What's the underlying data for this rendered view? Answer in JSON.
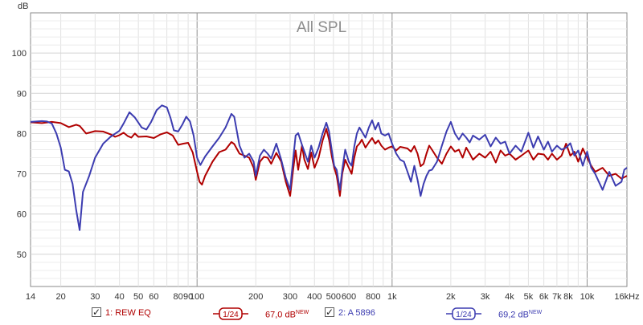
{
  "chart_data": {
    "type": "line",
    "title": "All SPL",
    "ylabel": "dB",
    "xunit": "Hz",
    "xscale": "log",
    "xlim": [
      14,
      16000
    ],
    "ylim": [
      42,
      110
    ],
    "grid": true,
    "xticks": [
      {
        "value": 14,
        "label": "14"
      },
      {
        "value": 20,
        "label": "20"
      },
      {
        "value": 30,
        "label": "30"
      },
      {
        "value": 40,
        "label": "40"
      },
      {
        "value": 50,
        "label": "50"
      },
      {
        "value": 60,
        "label": "60"
      },
      {
        "value": 80,
        "label": "80"
      },
      {
        "value": 90,
        "label": "90"
      },
      {
        "value": 100,
        "label": "100"
      },
      {
        "value": 200,
        "label": "200"
      },
      {
        "value": 300,
        "label": "300"
      },
      {
        "value": 400,
        "label": "400"
      },
      {
        "value": 500,
        "label": "500"
      },
      {
        "value": 600,
        "label": "600"
      },
      {
        "value": 800,
        "label": "800"
      },
      {
        "value": 1000,
        "label": "1k"
      },
      {
        "value": 2000,
        "label": "2k"
      },
      {
        "value": 3000,
        "label": "3k"
      },
      {
        "value": 4000,
        "label": "4k"
      },
      {
        "value": 5000,
        "label": "5k"
      },
      {
        "value": 6000,
        "label": "6k"
      },
      {
        "value": 7000,
        "label": "7k"
      },
      {
        "value": 8000,
        "label": "8k"
      },
      {
        "value": 10000,
        "label": "10k"
      },
      {
        "value": 16000,
        "label": "16kHz"
      }
    ],
    "yticks": [
      50,
      60,
      70,
      80,
      90,
      100
    ],
    "series": [
      {
        "name": "1: REW EQ",
        "color": "#b00000",
        "smoothing": "1/24",
        "level": "67,0 dB",
        "level_note": "NEW",
        "points": [
          [
            14,
            82.8
          ],
          [
            16,
            82.6
          ],
          [
            18,
            82.9
          ],
          [
            20,
            82.6
          ],
          [
            22,
            81.6
          ],
          [
            24,
            82.2
          ],
          [
            25,
            81.9
          ],
          [
            27,
            80.0
          ],
          [
            30,
            80.6
          ],
          [
            33,
            80.5
          ],
          [
            36,
            79.8
          ],
          [
            38,
            79.2
          ],
          [
            40,
            79.6
          ],
          [
            42,
            80.2
          ],
          [
            44,
            79.4
          ],
          [
            46,
            79.0
          ],
          [
            48,
            80.0
          ],
          [
            50,
            79.2
          ],
          [
            55,
            79.3
          ],
          [
            60,
            78.9
          ],
          [
            65,
            79.8
          ],
          [
            70,
            80.3
          ],
          [
            75,
            79.5
          ],
          [
            80,
            77.2
          ],
          [
            85,
            77.5
          ],
          [
            90,
            77.7
          ],
          [
            95,
            75.3
          ],
          [
            100,
            70.5
          ],
          [
            103,
            68.0
          ],
          [
            106,
            67.3
          ],
          [
            110,
            69.5
          ],
          [
            120,
            73.0
          ],
          [
            130,
            75.4
          ],
          [
            140,
            76.0
          ],
          [
            150,
            77.9
          ],
          [
            155,
            77.4
          ],
          [
            165,
            75.0
          ],
          [
            175,
            74.5
          ],
          [
            185,
            74.0
          ],
          [
            195,
            71.5
          ],
          [
            200,
            68.5
          ],
          [
            210,
            73.0
          ],
          [
            220,
            74.2
          ],
          [
            230,
            74.0
          ],
          [
            240,
            72.5
          ],
          [
            255,
            75.2
          ],
          [
            270,
            73.0
          ],
          [
            285,
            68.0
          ],
          [
            300,
            64.5
          ],
          [
            310,
            70.5
          ],
          [
            320,
            75.8
          ],
          [
            330,
            71.0
          ],
          [
            345,
            77.0
          ],
          [
            355,
            73.5
          ],
          [
            370,
            71.2
          ],
          [
            385,
            75.3
          ],
          [
            400,
            71.5
          ],
          [
            420,
            74.0
          ],
          [
            440,
            78.2
          ],
          [
            460,
            81.2
          ],
          [
            475,
            78.5
          ],
          [
            490,
            74.5
          ],
          [
            505,
            71.5
          ],
          [
            520,
            69.5
          ],
          [
            540,
            64.5
          ],
          [
            555,
            70.0
          ],
          [
            575,
            73.5
          ],
          [
            600,
            71.5
          ],
          [
            620,
            70.0
          ],
          [
            640,
            74.0
          ],
          [
            660,
            76.8
          ],
          [
            680,
            77.5
          ],
          [
            700,
            78.5
          ],
          [
            730,
            76.5
          ],
          [
            760,
            77.8
          ],
          [
            790,
            78.9
          ],
          [
            820,
            77.5
          ],
          [
            850,
            78.3
          ],
          [
            880,
            77.0
          ],
          [
            920,
            76.0
          ],
          [
            960,
            76.5
          ],
          [
            1000,
            76.8
          ],
          [
            1050,
            75.8
          ],
          [
            1100,
            76.7
          ],
          [
            1150,
            76.5
          ],
          [
            1200,
            76.3
          ],
          [
            1250,
            75.5
          ],
          [
            1300,
            76.9
          ],
          [
            1350,
            75.0
          ],
          [
            1400,
            71.9
          ],
          [
            1450,
            72.5
          ],
          [
            1500,
            75.0
          ],
          [
            1550,
            77.0
          ],
          [
            1600,
            76.0
          ],
          [
            1700,
            74.0
          ],
          [
            1800,
            72.5
          ],
          [
            1900,
            75.0
          ],
          [
            2000,
            76.8
          ],
          [
            2100,
            75.5
          ],
          [
            2200,
            76.0
          ],
          [
            2300,
            74.0
          ],
          [
            2400,
            76.5
          ],
          [
            2500,
            75.0
          ],
          [
            2600,
            73.5
          ],
          [
            2800,
            75.0
          ],
          [
            3000,
            74.0
          ],
          [
            3200,
            75.5
          ],
          [
            3400,
            72.8
          ],
          [
            3600,
            75.8
          ],
          [
            3800,
            74.5
          ],
          [
            4000,
            75.0
          ],
          [
            4300,
            73.5
          ],
          [
            4600,
            74.5
          ],
          [
            5000,
            75.8
          ],
          [
            5300,
            73.5
          ],
          [
            5600,
            75.0
          ],
          [
            6000,
            74.8
          ],
          [
            6300,
            73.5
          ],
          [
            6600,
            75.0
          ],
          [
            7000,
            73.5
          ],
          [
            7400,
            74.5
          ],
          [
            7800,
            77.5
          ],
          [
            8200,
            74.5
          ],
          [
            8600,
            75.5
          ],
          [
            9000,
            73.0
          ],
          [
            9500,
            76.3
          ],
          [
            10000,
            74.0
          ],
          [
            10500,
            72.0
          ],
          [
            11000,
            70.5
          ],
          [
            12000,
            71.5
          ],
          [
            13000,
            69.5
          ],
          [
            14000,
            70.0
          ],
          [
            15000,
            68.8
          ],
          [
            16000,
            69.5
          ]
        ]
      },
      {
        "name": "2: A 5896",
        "color": "#3c3cb0",
        "smoothing": "1/24",
        "level": "69,2 dB",
        "level_note": "NEW",
        "points": [
          [
            14,
            82.9
          ],
          [
            16,
            83.1
          ],
          [
            17,
            83.0
          ],
          [
            18,
            82.5
          ],
          [
            19,
            80.0
          ],
          [
            20,
            76.5
          ],
          [
            21,
            71.0
          ],
          [
            22,
            70.6
          ],
          [
            23,
            67.5
          ],
          [
            24,
            61.0
          ],
          [
            25,
            56.0
          ],
          [
            26,
            65.5
          ],
          [
            28,
            69.5
          ],
          [
            30,
            74.0
          ],
          [
            33,
            77.5
          ],
          [
            36,
            79.2
          ],
          [
            40,
            80.7
          ],
          [
            42,
            82.5
          ],
          [
            45,
            85.3
          ],
          [
            48,
            84.0
          ],
          [
            52,
            81.5
          ],
          [
            55,
            81.0
          ],
          [
            58,
            82.8
          ],
          [
            62,
            85.8
          ],
          [
            66,
            87.0
          ],
          [
            70,
            86.5
          ],
          [
            73,
            84.0
          ],
          [
            76,
            80.8
          ],
          [
            80,
            80.5
          ],
          [
            84,
            82.2
          ],
          [
            88,
            84.2
          ],
          [
            92,
            83.0
          ],
          [
            96,
            79.5
          ],
          [
            100,
            74.0
          ],
          [
            104,
            72.2
          ],
          [
            110,
            74.3
          ],
          [
            120,
            76.8
          ],
          [
            130,
            79.0
          ],
          [
            140,
            81.5
          ],
          [
            150,
            84.9
          ],
          [
            155,
            84.2
          ],
          [
            165,
            77.0
          ],
          [
            175,
            74.0
          ],
          [
            185,
            75.0
          ],
          [
            195,
            73.0
          ],
          [
            200,
            69.5
          ],
          [
            210,
            74.5
          ],
          [
            220,
            76.0
          ],
          [
            230,
            75.0
          ],
          [
            240,
            73.8
          ],
          [
            255,
            77.5
          ],
          [
            270,
            73.5
          ],
          [
            285,
            69.0
          ],
          [
            300,
            66.0
          ],
          [
            310,
            73.0
          ],
          [
            320,
            79.5
          ],
          [
            330,
            80.1
          ],
          [
            345,
            77.2
          ],
          [
            355,
            75.5
          ],
          [
            370,
            73.0
          ],
          [
            385,
            77.0
          ],
          [
            400,
            74.0
          ],
          [
            420,
            76.5
          ],
          [
            440,
            80.0
          ],
          [
            460,
            82.7
          ],
          [
            475,
            80.5
          ],
          [
            490,
            76.0
          ],
          [
            505,
            72.0
          ],
          [
            520,
            71.0
          ],
          [
            540,
            66.0
          ],
          [
            555,
            71.0
          ],
          [
            575,
            76.0
          ],
          [
            600,
            73.0
          ],
          [
            620,
            72.0
          ],
          [
            640,
            76.8
          ],
          [
            660,
            80.0
          ],
          [
            680,
            81.5
          ],
          [
            700,
            80.5
          ],
          [
            730,
            79.0
          ],
          [
            760,
            81.5
          ],
          [
            790,
            83.3
          ],
          [
            820,
            81.0
          ],
          [
            850,
            82.7
          ],
          [
            880,
            80.0
          ],
          [
            920,
            79.5
          ],
          [
            960,
            80.0
          ],
          [
            1000,
            77.5
          ],
          [
            1050,
            75.0
          ],
          [
            1100,
            73.5
          ],
          [
            1150,
            73.0
          ],
          [
            1200,
            70.5
          ],
          [
            1250,
            68.0
          ],
          [
            1300,
            72.0
          ],
          [
            1350,
            68.5
          ],
          [
            1400,
            64.5
          ],
          [
            1450,
            67.5
          ],
          [
            1500,
            69.5
          ],
          [
            1550,
            70.8
          ],
          [
            1600,
            71.0
          ],
          [
            1700,
            73.0
          ],
          [
            1800,
            77.0
          ],
          [
            1900,
            80.5
          ],
          [
            2000,
            82.9
          ],
          [
            2100,
            80.0
          ],
          [
            2200,
            78.5
          ],
          [
            2300,
            80.0
          ],
          [
            2400,
            79.0
          ],
          [
            2500,
            77.8
          ],
          [
            2600,
            79.5
          ],
          [
            2800,
            78.5
          ],
          [
            3000,
            79.7
          ],
          [
            3200,
            76.8
          ],
          [
            3400,
            79.0
          ],
          [
            3600,
            77.5
          ],
          [
            3800,
            78.0
          ],
          [
            4000,
            75.0
          ],
          [
            4300,
            77.0
          ],
          [
            4600,
            75.5
          ],
          [
            5000,
            80.2
          ],
          [
            5300,
            76.5
          ],
          [
            5600,
            79.3
          ],
          [
            6000,
            76.0
          ],
          [
            6300,
            78.0
          ],
          [
            6600,
            75.5
          ],
          [
            7000,
            77.0
          ],
          [
            7400,
            76.0
          ],
          [
            7800,
            76.5
          ],
          [
            8200,
            77.6
          ],
          [
            8600,
            74.5
          ],
          [
            9000,
            75.8
          ],
          [
            9500,
            72.0
          ],
          [
            10000,
            75.5
          ],
          [
            10500,
            71.5
          ],
          [
            11000,
            70.0
          ],
          [
            12000,
            66.0
          ],
          [
            13000,
            70.5
          ],
          [
            14000,
            67.0
          ],
          [
            15000,
            68.0
          ],
          [
            15500,
            71.0
          ],
          [
            16000,
            71.5
          ]
        ]
      }
    ]
  },
  "legend": {
    "items": [
      {
        "checked": true,
        "label": "1: REW EQ",
        "smoothing": "1/24",
        "level": "67,0 dB",
        "level_note": "NEW",
        "color": "#b00000"
      },
      {
        "checked": true,
        "label": "2: A 5896",
        "smoothing": "1/24",
        "level": "69,2 dB",
        "level_note": "NEW",
        "color": "#3c3cb0"
      }
    ]
  }
}
